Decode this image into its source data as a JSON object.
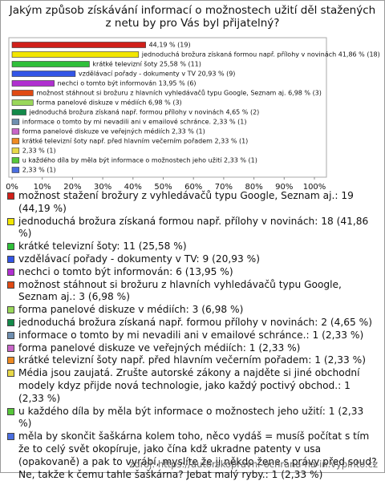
{
  "chart_data": {
    "type": "hbar",
    "title": "Jakým způsob získávání informací o možnostech užití děl stažených z netu by pro Vás byl přijatelný?",
    "values": [
      44.19,
      41.86,
      25.58,
      20.93,
      13.95,
      6.98,
      6.98,
      4.65,
      2.33,
      2.33,
      2.33,
      2.33,
      2.33,
      2.33
    ],
    "value_labels": [
      "44,19 % (19)",
      "jednoduchá brožura získaná formou např. přílohy v novinách 41,86 % (18)",
      "krátké televizní šoty 25,58 % (11)",
      "vzdělávací pořady - dokumenty v TV 20,93 % (9)",
      "nechci o tomto být informován 13,95 % (6)",
      "možnost stáhnout si brožuru z hlavních vyhledávačů typu Google, Seznam aj. 6,98 % (3)",
      "forma panelové diskuze v médiích 6,98 % (3)",
      "jednoduchá brožura získaná např. formou přílohy v novinách 4,65 % (2)",
      "informace o tomto by mi nevadili ani v emailové schránce. 2,33 % (1)",
      "forma panelové diskuze ve veřejných médiích 2,33 % (1)",
      "krátké televizní šoty např. před hlavním večerním pořadem 2,33 % (1)",
      "2,33 % (1)",
      "u každého díla by měla být informace o možnostech jeho užití 2,33 % (1)",
      "2,33 % (1)"
    ],
    "colors": [
      "#d0201a",
      "#f2e600",
      "#2fbf3a",
      "#3355e6",
      "#b02fd0",
      "#e04a14",
      "#9ad85a",
      "#138a4a",
      "#6f8fb0",
      "#c865c8",
      "#ee8a22",
      "#e8d848",
      "#57c73a",
      "#4a6ee0"
    ],
    "legend": [
      "možnost stažení brožury z vyhledávačů typu Google, Seznam aj.: 19 (44,19 %)",
      "jednoduchá brožura získaná formou např. přílohy v novinách: 18 (41,86 %)",
      "krátké televizní šoty: 11 (25,58 %)",
      "vzdělávací pořady - dokumenty v TV: 9 (20,93 %)",
      "nechci o tomto být informován: 6 (13,95 %)",
      "možnost stáhnout si brožuru z hlavních vyhledávačů typu Google, Seznam aj.: 3 (6,98 %)",
      "forma panelové diskuze v médiích: 3 (6,98 %)",
      "jednoduchá brožura získaná např. formou přílohy v novinách: 2 (4,65 %)",
      "informace o tomto by mi nevadili ani v emailové schránce.: 1 (2,33 %)",
      "forma panelové diskuze ve veřejných médiích: 1 (2,33 %)",
      "krátké televizní šoty např. před hlavním večerním pořadem: 1 (2,33 %)",
      "Média jsou zaujatá. Zrušte autorské zákony a najděte si jiné obchodní modely kdyz přijde nová technologie, jako každý poctivý obchod.: 1 (2,33 %)",
      "u každého díla by měla být informace o možnostech jeho užití: 1 (2,33 %)",
      "měla by skončit šaškárna kolem toho, něco vydáš = musíš počítat s tím že to celý svět okopíruje, jako čína kdž ukradne patenty v usa (opakovaně) a pak to vyrábí, myslíte že ji někdo žene s právy před soud? Ne, takže k čemu tahle šaškárna? Jebat malý ryby.: 1 (2,33 %)"
    ],
    "xlim": [
      0,
      100
    ],
    "xticks": [
      {
        "value": 0,
        "label": "0%"
      },
      {
        "value": 10,
        "label": "10%"
      },
      {
        "value": 20,
        "label": "20%"
      },
      {
        "value": 30,
        "label": "30%"
      },
      {
        "value": 40,
        "label": "40%"
      },
      {
        "value": 50,
        "label": "50%"
      },
      {
        "value": 60,
        "label": "60%"
      },
      {
        "value": 70,
        "label": "70%"
      },
      {
        "value": 80,
        "label": "80%"
      },
      {
        "value": 90,
        "label": "90%"
      },
      {
        "value": 100,
        "label": "100%"
      }
    ],
    "source": "zdroj: https://autorskopravni-ochrana-na-in.vyplnto.cz"
  }
}
